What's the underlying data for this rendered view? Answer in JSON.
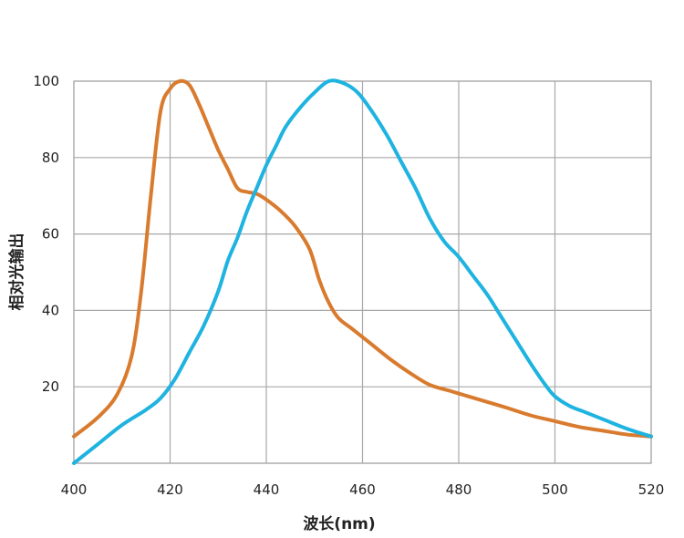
{
  "chart_data": {
    "type": "line",
    "title": "",
    "xlabel": "波长(nm)",
    "ylabel": "相对光输出",
    "xlim": [
      400,
      520
    ],
    "ylim": [
      0,
      100
    ],
    "x_ticks": [
      "400",
      "420",
      "440",
      "460",
      "480",
      "500",
      "520"
    ],
    "y_ticks": [
      "20",
      "40",
      "60",
      "80",
      "100"
    ],
    "grid": true,
    "legend": "none",
    "series": [
      {
        "color": "#d97b2e",
        "points": [
          [
            400,
            7
          ],
          [
            405,
            12
          ],
          [
            409,
            18
          ],
          [
            412,
            28
          ],
          [
            414,
            45
          ],
          [
            416,
            70
          ],
          [
            418,
            92
          ],
          [
            420,
            98
          ],
          [
            422,
            100
          ],
          [
            424,
            99
          ],
          [
            426,
            94
          ],
          [
            428,
            88
          ],
          [
            430,
            82
          ],
          [
            432,
            77
          ],
          [
            434,
            72
          ],
          [
            436,
            71
          ],
          [
            438,
            70.5
          ],
          [
            440,
            69
          ],
          [
            443,
            66
          ],
          [
            446,
            62
          ],
          [
            449,
            56
          ],
          [
            451,
            48
          ],
          [
            453,
            42
          ],
          [
            455,
            38
          ],
          [
            458,
            35
          ],
          [
            462,
            31
          ],
          [
            466,
            27
          ],
          [
            470,
            23.5
          ],
          [
            474,
            20.5
          ],
          [
            478,
            19
          ],
          [
            482,
            17.5
          ],
          [
            486,
            16
          ],
          [
            490,
            14.5
          ],
          [
            495,
            12.5
          ],
          [
            500,
            11
          ],
          [
            505,
            9.5
          ],
          [
            510,
            8.5
          ],
          [
            515,
            7.5
          ],
          [
            520,
            7
          ]
        ]
      },
      {
        "color": "#1eb3e0",
        "points": [
          [
            400,
            0
          ],
          [
            405,
            5
          ],
          [
            410,
            10
          ],
          [
            415,
            14
          ],
          [
            418,
            17
          ],
          [
            421,
            22
          ],
          [
            424,
            29
          ],
          [
            427,
            36
          ],
          [
            430,
            45
          ],
          [
            432,
            53
          ],
          [
            434,
            59
          ],
          [
            436,
            66
          ],
          [
            438,
            72
          ],
          [
            440,
            78
          ],
          [
            442,
            83
          ],
          [
            444,
            88
          ],
          [
            447,
            93
          ],
          [
            450,
            97
          ],
          [
            453,
            100
          ],
          [
            456,
            99.5
          ],
          [
            459,
            97
          ],
          [
            462,
            92
          ],
          [
            465,
            86
          ],
          [
            468,
            79
          ],
          [
            471,
            72
          ],
          [
            474,
            64
          ],
          [
            477,
            58
          ],
          [
            480,
            54
          ],
          [
            483,
            49
          ],
          [
            486,
            44
          ],
          [
            489,
            38
          ],
          [
            492,
            32
          ],
          [
            495,
            26
          ],
          [
            498,
            20.5
          ],
          [
            500,
            17.5
          ],
          [
            503,
            15
          ],
          [
            506,
            13.5
          ],
          [
            510,
            11.5
          ],
          [
            515,
            9
          ],
          [
            520,
            7
          ]
        ]
      }
    ]
  }
}
